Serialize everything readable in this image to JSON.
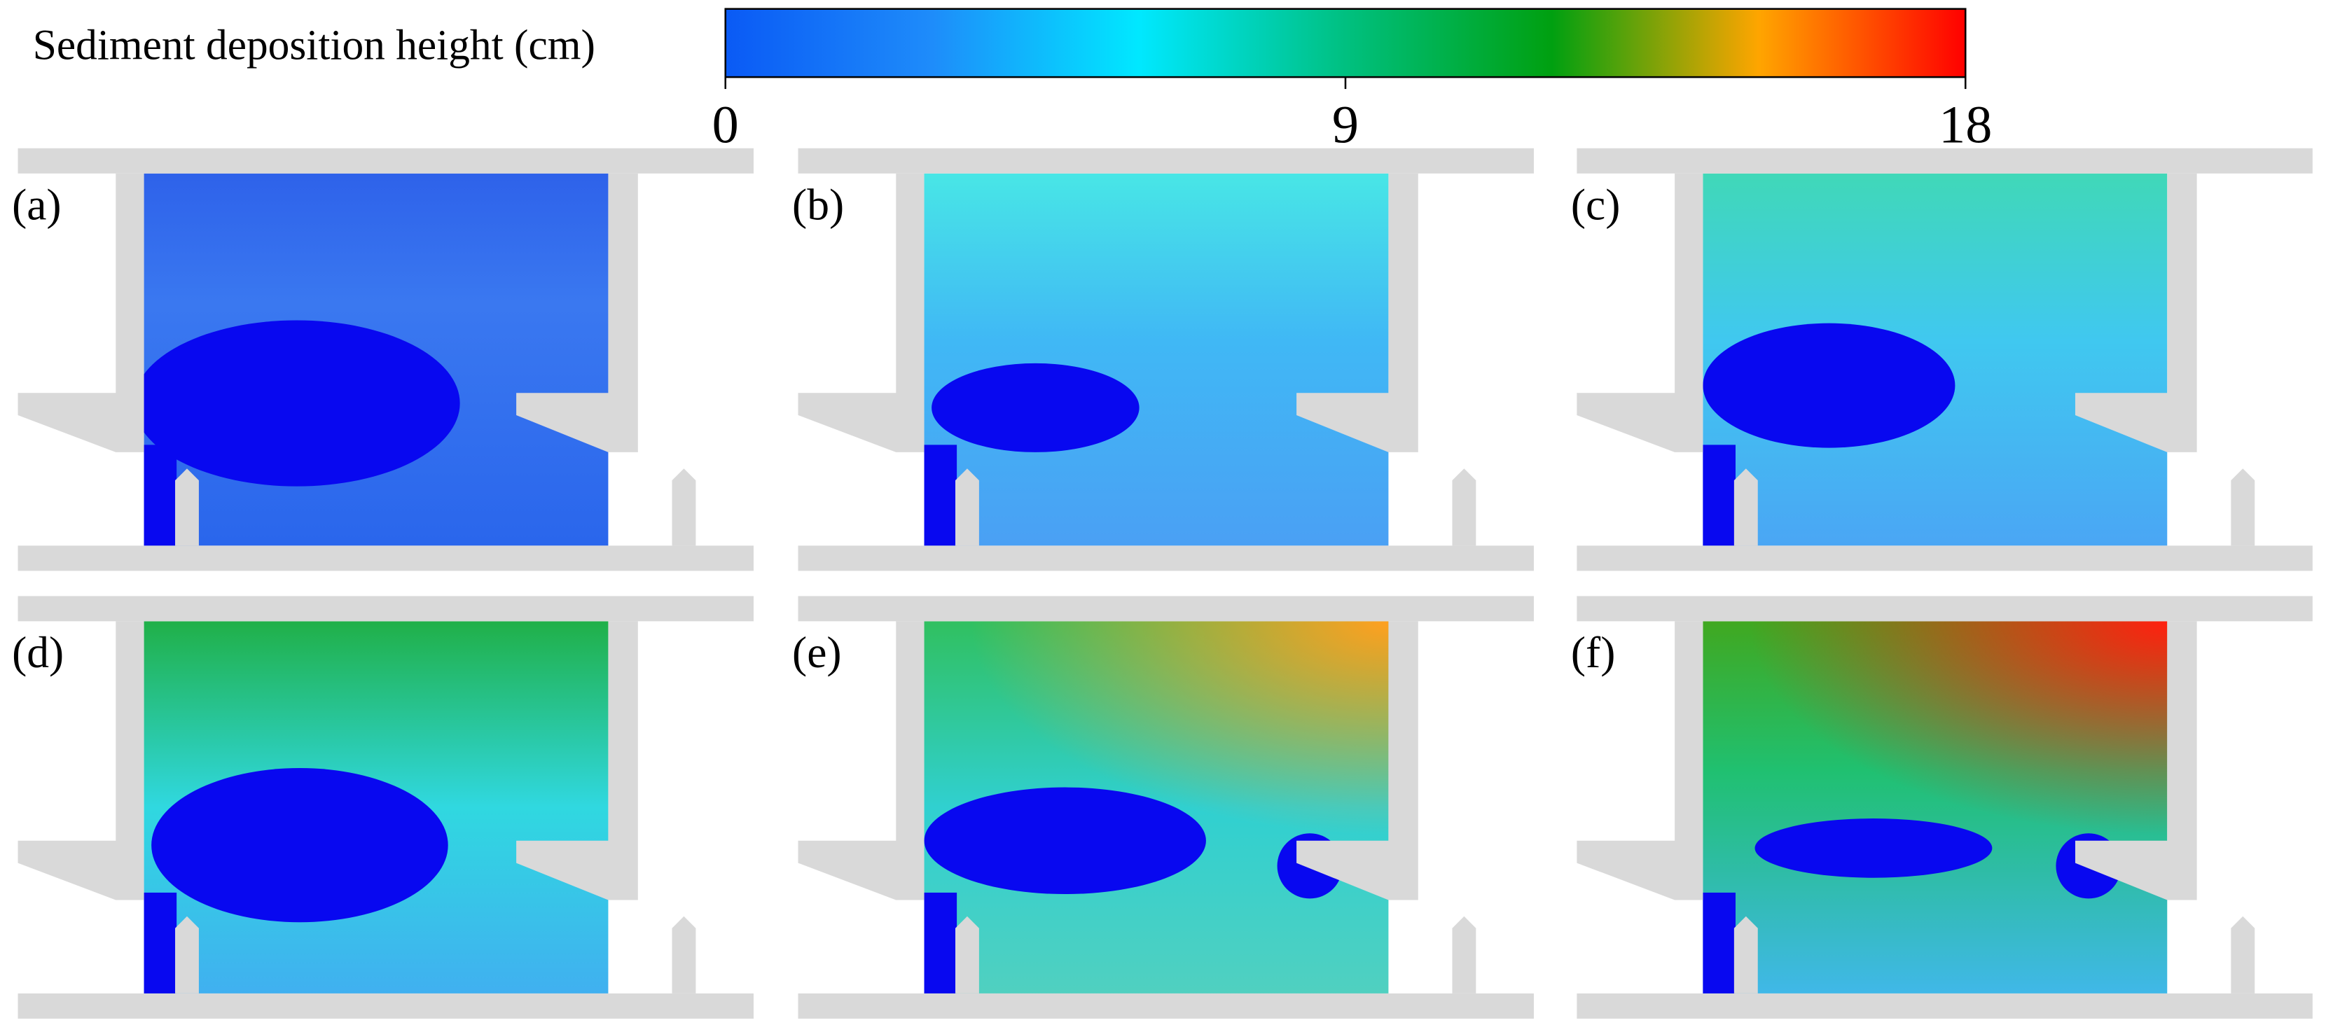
{
  "colorbar": {
    "label": "Sediment deposition height (cm)",
    "range": [
      0,
      18
    ],
    "ticks": [
      0,
      9,
      18
    ],
    "colors": [
      "#0a5af5",
      "#1e8cfa",
      "#00e8ff",
      "#00c080",
      "#00a010",
      "#ffa500",
      "#ff0000"
    ]
  },
  "panels": [
    {
      "label": "(a)"
    },
    {
      "label": "(b)"
    },
    {
      "label": "(c)"
    },
    {
      "label": "(d)"
    },
    {
      "label": "(e)"
    },
    {
      "label": "(f)"
    }
  ]
}
